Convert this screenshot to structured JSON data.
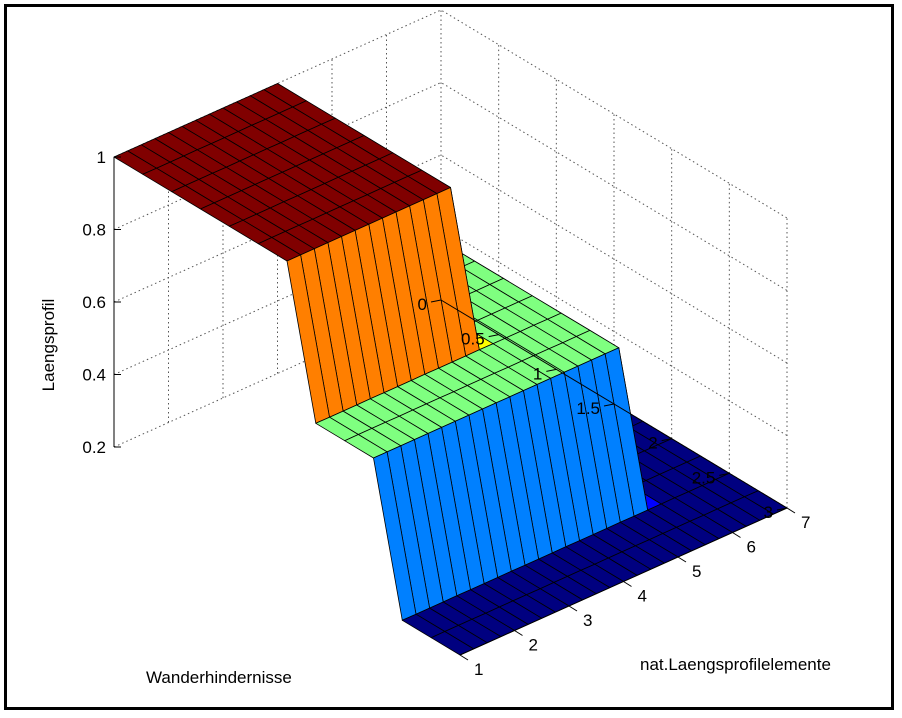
{
  "chart_data": {
    "type": "surface",
    "title": "",
    "xlabel": "Wanderhindernisse",
    "ylabel": "nat.Laengsprofilelemente",
    "zlabel": "Laengsprofil",
    "x_ticks": [
      "0",
      "0.5",
      "1",
      "1.5",
      "2",
      "2.5",
      "3"
    ],
    "y_ticks": [
      "1",
      "2",
      "3",
      "4",
      "5",
      "6",
      "7"
    ],
    "z_ticks": [
      "0.2",
      "0.4",
      "0.6",
      "0.8",
      "1"
    ],
    "xlim": [
      0,
      3
    ],
    "ylim": [
      1,
      7
    ],
    "zlim": [
      0.2,
      1
    ],
    "grid": true,
    "colormap": "jet",
    "z_levels": {
      "low": 0.2,
      "mid": 0.6,
      "high": 1.0
    },
    "regions": [
      {
        "x_range": [
          0,
          1.5
        ],
        "y_range": [
          1,
          4
        ],
        "z": 1.0
      },
      {
        "x_range": [
          0,
          2.25
        ],
        "y_range": [
          1,
          5.5
        ],
        "z": 0.6
      },
      {
        "x_range": [
          0,
          3
        ],
        "y_range": [
          1,
          7
        ],
        "z": 0.2
      }
    ]
  }
}
